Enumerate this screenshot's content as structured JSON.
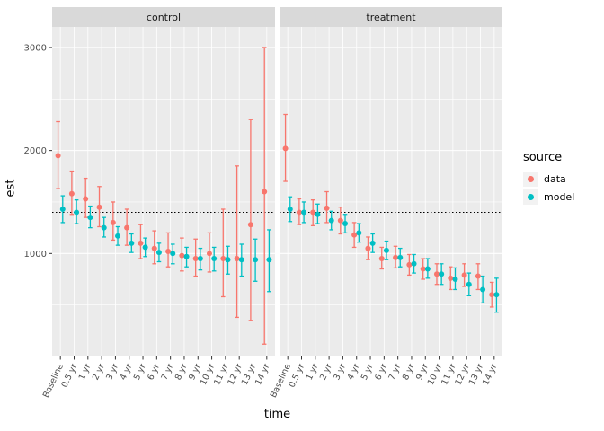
{
  "legend": {
    "title": "source",
    "entries": [
      {
        "name": "data",
        "label": "data",
        "color": "#F8766D"
      },
      {
        "name": "model",
        "label": "model",
        "color": "#00BFC4"
      }
    ]
  },
  "colors": {
    "panel_bg": "#EBEBEB",
    "strip_bg": "#D9D9D9",
    "grid": "#FFFFFF",
    "axis_text": "#4D4D4D",
    "tick_mark": "#333333",
    "strip_text": "#1A1A1A",
    "reference_line": "#000000"
  },
  "chart_data": {
    "type": "scatter",
    "subtype": "points with error bars, dodged, faceted by group",
    "xlabel": "time",
    "ylabel": "est",
    "y_ticks": [
      1000,
      2000,
      3000
    ],
    "ylim": [
      0,
      3200
    ],
    "reference_line_y": 1400,
    "legend_position": "right",
    "grid": "on",
    "categories": [
      "Baseline",
      "0.5 yr",
      "1 yr",
      "2 yr",
      "3 yr",
      "4 yr",
      "5 yr",
      "6 yr",
      "7 yr",
      "8 yr",
      "9 yr",
      "10 yr",
      "11 yr",
      "12 yr",
      "13 yr",
      "14 yr"
    ],
    "panels": [
      {
        "facet": "control",
        "series": [
          {
            "name": "data",
            "est": [
              1950,
              1580,
              1530,
              1450,
              1300,
              1250,
              1100,
              1050,
              1020,
              980,
              950,
              1000,
              950,
              950,
              1280,
              1600
            ],
            "lo": [
              1630,
              1380,
              1350,
              1260,
              1130,
              1080,
              950,
              900,
              870,
              830,
              780,
              820,
              580,
              380,
              350,
              120
            ],
            "hi": [
              2280,
              1800,
              1730,
              1650,
              1500,
              1430,
              1280,
              1220,
              1200,
              1150,
              1140,
              1200,
              1430,
              1850,
              2300,
              3000
            ]
          },
          {
            "name": "model",
            "est": [
              1430,
              1400,
              1350,
              1250,
              1170,
              1100,
              1060,
              1010,
              1000,
              970,
              950,
              950,
              940,
              940,
              940,
              940
            ],
            "lo": [
              1300,
              1290,
              1250,
              1160,
              1080,
              1010,
              970,
              920,
              900,
              870,
              840,
              830,
              800,
              780,
              730,
              630
            ],
            "hi": [
              1560,
              1520,
              1460,
              1350,
              1260,
              1190,
              1150,
              1100,
              1090,
              1060,
              1050,
              1060,
              1070,
              1090,
              1140,
              1230
            ]
          }
        ]
      },
      {
        "facet": "treatment",
        "series": [
          {
            "name": "data",
            "est": [
              2020,
              1400,
              1400,
              1440,
              1320,
              1180,
              1050,
              950,
              960,
              890,
              850,
              800,
              760,
              790,
              780,
              600
            ],
            "lo": [
              1700,
              1280,
              1270,
              1300,
              1190,
              1060,
              940,
              850,
              860,
              790,
              750,
              700,
              650,
              680,
              650,
              480
            ],
            "hi": [
              2350,
              1530,
              1520,
              1600,
              1450,
              1300,
              1160,
              1060,
              1070,
              990,
              950,
              900,
              870,
              900,
              900,
              720
            ]
          },
          {
            "name": "model",
            "est": [
              1430,
              1400,
              1380,
              1320,
              1290,
              1200,
              1100,
              1030,
              960,
              900,
              850,
              800,
              750,
              700,
              650,
              600
            ],
            "lo": [
              1310,
              1300,
              1290,
              1230,
              1200,
              1110,
              1010,
              940,
              870,
              810,
              760,
              700,
              650,
              590,
              520,
              430
            ],
            "hi": [
              1550,
              1500,
              1480,
              1410,
              1380,
              1290,
              1190,
              1120,
              1050,
              990,
              950,
              900,
              860,
              810,
              780,
              760
            ]
          }
        ]
      }
    ]
  }
}
